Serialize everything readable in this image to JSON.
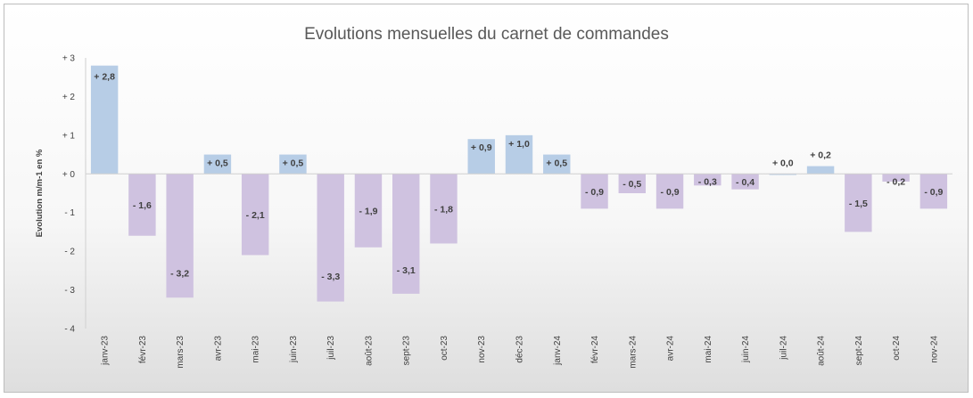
{
  "chart_data": {
    "type": "bar",
    "title": "Evolutions mensuelles du carnet de commandes",
    "ylabel": "Evolution m/m-1 en %",
    "xlabel": "",
    "ylim": [
      -4,
      3
    ],
    "yticks": [
      3,
      2,
      1,
      0,
      -1,
      -2,
      -3,
      -4
    ],
    "ytick_labels": [
      "+ 3",
      "+ 2",
      "+ 1",
      "+ 0",
      "- 1",
      "- 2",
      "- 3",
      "- 4"
    ],
    "grid": false,
    "legend": "none",
    "colors": {
      "positive": "#b7cde6",
      "negative": "#cfc2e0",
      "axis": "#d0d0d0"
    },
    "categories": [
      "janv-23",
      "févr-23",
      "mars-23",
      "avr-23",
      "mai-23",
      "juin-23",
      "juil-23",
      "août-23",
      "sept-23",
      "oct-23",
      "nov-23",
      "déc-23",
      "janv-24",
      "févr-24",
      "mars-24",
      "avr-24",
      "mai-24",
      "juin-24",
      "juil-24",
      "août-24",
      "sept-24",
      "oct-24",
      "nov-24"
    ],
    "values": [
      2.8,
      -1.6,
      -3.2,
      0.5,
      -2.1,
      0.5,
      -3.3,
      -1.9,
      -3.1,
      -1.8,
      0.9,
      1.0,
      0.5,
      -0.9,
      -0.5,
      -0.9,
      -0.3,
      -0.4,
      0.0,
      0.2,
      -1.5,
      -0.2,
      -0.9
    ],
    "data_labels": [
      "+ 2,8",
      "- 1,6",
      "- 3,2",
      "+ 0,5",
      "- 2,1",
      "+ 0,5",
      "- 3,3",
      "- 1,9",
      "- 3,1",
      "- 1,8",
      "+ 0,9",
      "+ 1,0",
      "+ 0,5",
      "- 0,9",
      "- 0,5",
      "- 0,9",
      "- 0,3",
      "- 0,4",
      "+ 0,0",
      "+ 0,2",
      "- 1,5",
      "- 0,2",
      "- 0,9"
    ]
  }
}
